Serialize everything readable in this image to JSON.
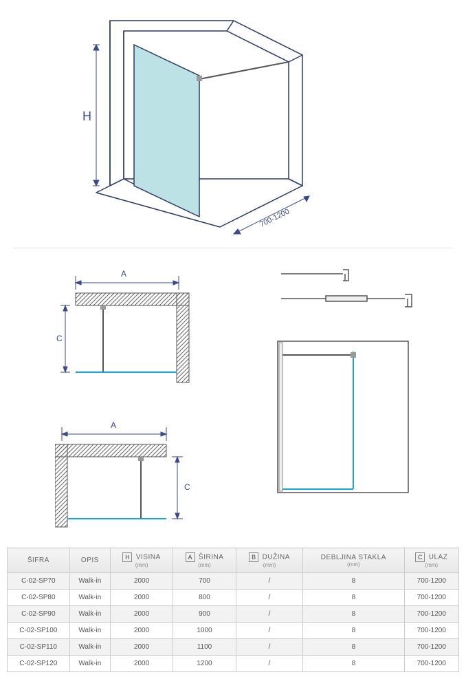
{
  "iso": {
    "height_label": "H",
    "width_range_label": "700-1200",
    "glass_color": "#bce2e6",
    "line_color": "#2b3a67",
    "dim_color": "#3a4a8a"
  },
  "schematic": {
    "labels": {
      "A": "A",
      "C": "C"
    },
    "hatch_color": "#666666",
    "line_color": "#555555",
    "glass_line_color": "#1aa6d6",
    "dim_color": "#3a4a8a"
  },
  "table": {
    "headers": {
      "sifra": "ŠIFRA",
      "opis": "OPIS",
      "visina": "VISINA",
      "sirina": "ŠIRINA",
      "duzina": "DUŽINA",
      "debljina": "DEBLJINA STAKLA",
      "ulaz": "ULAZ",
      "unit": "(mm)",
      "H": "H",
      "A": "A",
      "B": "B",
      "C": "C"
    },
    "rows": [
      {
        "sifra": "C-02-SP70",
        "opis": "Walk-in",
        "visina": "2000",
        "sirina": "700",
        "duzina": "/",
        "debljina": "8",
        "ulaz": "700-1200"
      },
      {
        "sifra": "C-02-SP80",
        "opis": "Walk-in",
        "visina": "2000",
        "sirina": "800",
        "duzina": "/",
        "debljina": "8",
        "ulaz": "700-1200"
      },
      {
        "sifra": "C-02-SP90",
        "opis": "Walk-in",
        "visina": "2000",
        "sirina": "900",
        "duzina": "/",
        "debljina": "8",
        "ulaz": "700-1200"
      },
      {
        "sifra": "C-02-SP100",
        "opis": "Walk-in",
        "visina": "2000",
        "sirina": "1000",
        "duzina": "/",
        "debljina": "8",
        "ulaz": "700-1200"
      },
      {
        "sifra": "C-02-SP110",
        "opis": "Walk-in",
        "visina": "2000",
        "sirina": "1100",
        "duzina": "/",
        "debljina": "8",
        "ulaz": "700-1200"
      },
      {
        "sifra": "C-02-SP120",
        "opis": "Walk-in",
        "visina": "2000",
        "sirina": "1200",
        "duzina": "/",
        "debljina": "8",
        "ulaz": "700-1200"
      }
    ]
  }
}
